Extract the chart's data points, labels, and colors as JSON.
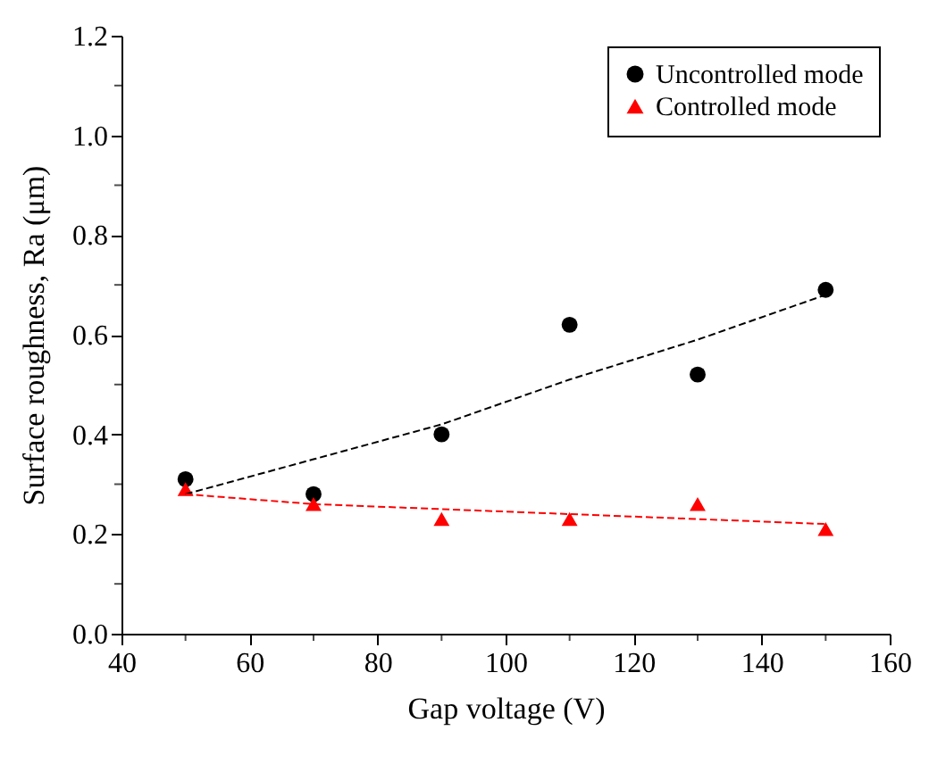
{
  "chart_data": {
    "type": "scatter",
    "xlabel": "Gap voltage (V)",
    "ylabel": "Surface roughness, Ra (μm)",
    "x": [
      50,
      70,
      90,
      110,
      130,
      150
    ],
    "series": [
      {
        "name": "Uncontrolled mode",
        "marker": "circle",
        "color": "#000000",
        "values": [
          0.31,
          0.28,
          0.4,
          0.62,
          0.52,
          0.69
        ]
      },
      {
        "name": "Controlled mode",
        "marker": "triangle",
        "color": "#ff0000",
        "values": [
          0.29,
          0.26,
          0.23,
          0.23,
          0.26,
          0.21
        ]
      },
      {
        "type": "line",
        "line_style": "dashed",
        "color": "#000000",
        "x": [
          50,
          70,
          90,
          110,
          130,
          150
        ],
        "values": [
          0.28,
          0.35,
          0.42,
          0.51,
          0.59,
          0.68
        ]
      },
      {
        "type": "line",
        "line_style": "dashed",
        "color": "#ff0000",
        "x": [
          50,
          70,
          90,
          110,
          130,
          150
        ],
        "values": [
          0.28,
          0.26,
          0.25,
          0.24,
          0.23,
          0.22
        ]
      }
    ],
    "xlim": [
      40,
      160
    ],
    "xticks": [
      40,
      {
        "value": 50,
        "label": null
      },
      60,
      {
        "value": 70,
        "label": null
      },
      80,
      {
        "value": 90,
        "label": null
      },
      100,
      {
        "value": 110,
        "label": null
      },
      120,
      {
        "value": 130,
        "label": null
      },
      140,
      {
        "value": 150,
        "label": null
      },
      160
    ],
    "ylim": [
      0,
      1.2
    ],
    "yticks": [
      {
        "value": 0,
        "label": "0.0"
      },
      {
        "value": 0.1,
        "label": null
      },
      0.2,
      {
        "value": 0.3,
        "label": null
      },
      0.4,
      {
        "value": 0.5,
        "label": null
      },
      0.6,
      {
        "value": 0.7,
        "label": null
      },
      0.8,
      {
        "value": 0.9,
        "label": null
      },
      {
        "value": 1,
        "label": "1.0"
      },
      {
        "value": 1.1,
        "label": null
      },
      1.2
    ],
    "grid": false,
    "legend": "top right"
  }
}
